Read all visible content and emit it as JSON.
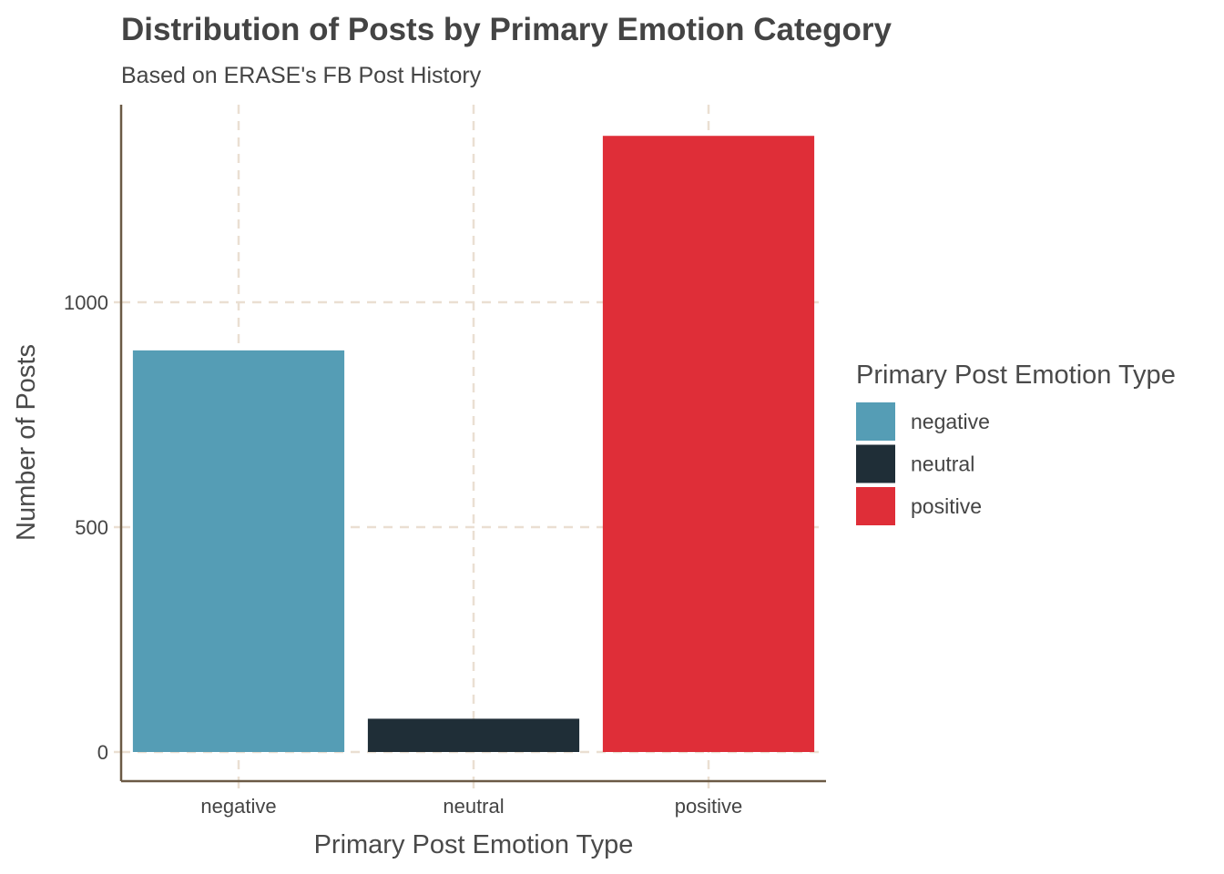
{
  "chart_data": {
    "type": "bar",
    "title": "Distribution of Posts by Primary Emotion Category",
    "subtitle": "Based on ERASE's FB Post History",
    "xlabel": "Primary Post Emotion Type",
    "ylabel": "Number of Posts",
    "categories": [
      "negative",
      "neutral",
      "positive"
    ],
    "values": [
      893,
      74,
      1370
    ],
    "colors": [
      "#559db5",
      "#1f2e37",
      "#df2e38"
    ],
    "ylim": [
      -65,
      1440
    ],
    "yticks": [
      0,
      500,
      1000
    ],
    "ytick_labels": [
      "0",
      "500",
      "1000"
    ],
    "grid": true,
    "grid_style": "dashed",
    "legend": {
      "title": "Primary Post Emotion Type",
      "placement": "right",
      "entries": [
        "negative",
        "neutral",
        "positive"
      ]
    }
  }
}
